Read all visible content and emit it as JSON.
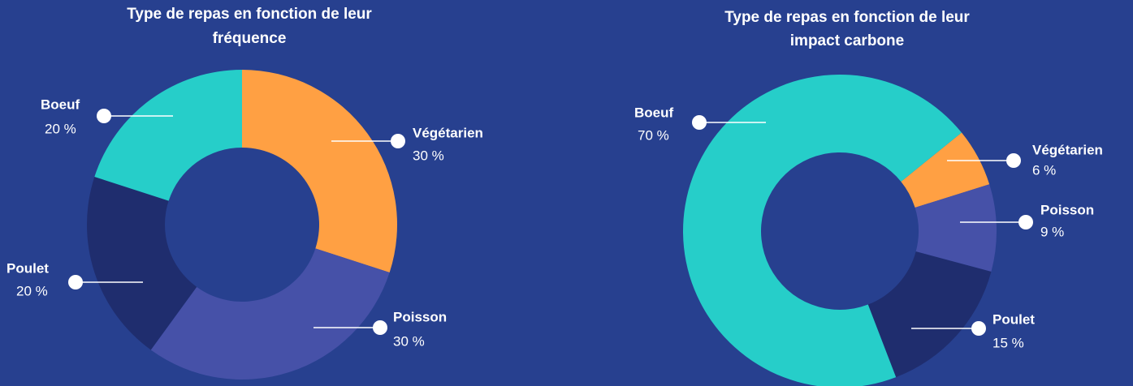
{
  "chart_data": [
    {
      "type": "donut",
      "title": [
        "Type de repas en fonction de leur",
        "fréquence"
      ],
      "categories": [
        "Végétarien",
        "Poisson",
        "Poulet",
        "Boeuf"
      ],
      "values": [
        30,
        30,
        20,
        20
      ],
      "value_labels": [
        "30 %",
        "30 %",
        "20 %",
        "20 %"
      ],
      "colors": [
        "#ffa043",
        "#4651a8",
        "#1f2d6e",
        "#26cec9"
      ]
    },
    {
      "type": "donut",
      "title": [
        "Type de repas en fonction de leur",
        "impact carbone"
      ],
      "categories": [
        "Végétarien",
        "Poisson",
        "Poulet",
        "Boeuf"
      ],
      "values": [
        6,
        9,
        15,
        70
      ],
      "value_labels": [
        "6 %",
        "9 %",
        "15 %",
        "70 %"
      ],
      "colors": [
        "#ffa043",
        "#4651a8",
        "#1f2d6e",
        "#26cec9"
      ]
    }
  ]
}
